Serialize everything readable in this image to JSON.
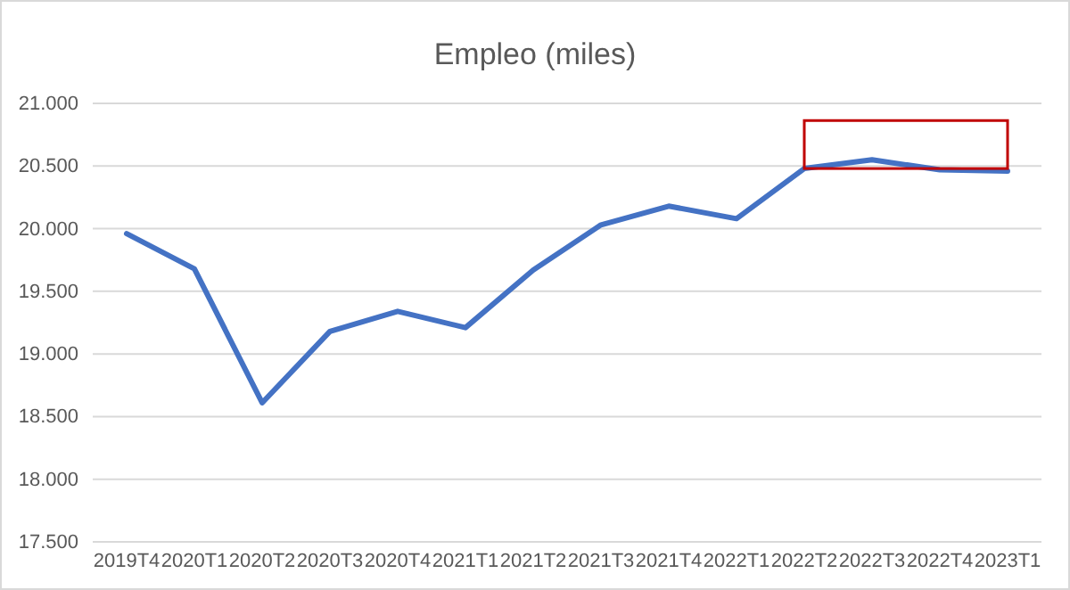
{
  "chart_data": {
    "type": "line",
    "title": "Empleo (miles)",
    "categories": [
      "2019T4",
      "2020T1",
      "2020T2",
      "2020T3",
      "2020T4",
      "2021T1",
      "2021T2",
      "2021T3",
      "2021T4",
      "2022T1",
      "2022T2",
      "2022T3",
      "2022T4",
      "2023T1"
    ],
    "series": [
      {
        "color": "#4472c4",
        "values": [
          19960,
          19680,
          18610,
          19180,
          19340,
          19210,
          19670,
          20030,
          20180,
          20080,
          20480,
          20550,
          20470,
          20460
        ]
      }
    ],
    "ylim": [
      17500,
      21000
    ],
    "yticks": [
      {
        "value": 17500,
        "label": "17.500"
      },
      {
        "value": 18000,
        "label": "18.000"
      },
      {
        "value": 18500,
        "label": "18.500"
      },
      {
        "value": 19000,
        "label": "19.000"
      },
      {
        "value": 19500,
        "label": "19.500"
      },
      {
        "value": 20000,
        "label": "20.000"
      },
      {
        "value": 20500,
        "label": "20.500"
      },
      {
        "value": 21000,
        "label": "21.000"
      }
    ],
    "grid": "y",
    "legend": false,
    "marker": "none",
    "line_style": "solid"
  }
}
